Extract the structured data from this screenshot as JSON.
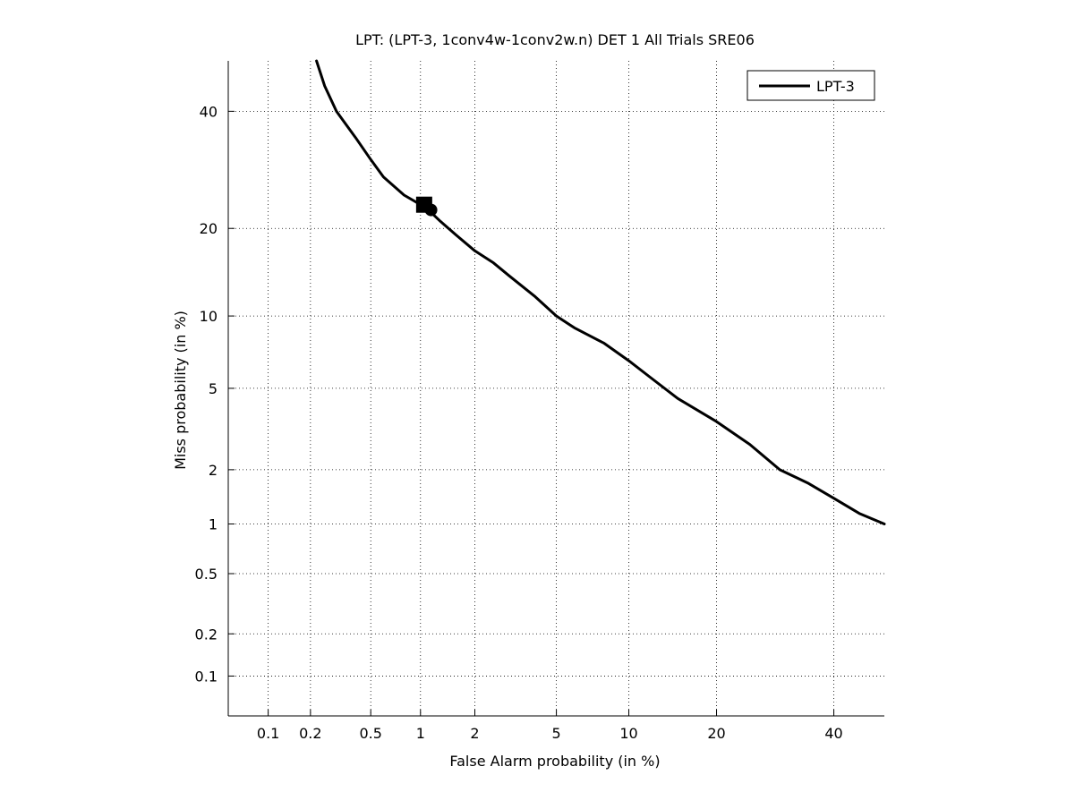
{
  "chart_data": {
    "type": "line",
    "title": "LPT: (LPT-3, 1conv4w-1conv2w.n) DET 1 All Trials SRE06",
    "xlabel": "False Alarm probability (in %)",
    "ylabel": "Miss probability (in %)",
    "x_scale": "normal-deviate (probit)",
    "y_scale": "normal-deviate (probit)",
    "xlim": [
      0.05,
      50
    ],
    "ylim": [
      0.05,
      50
    ],
    "x_ticks": [
      0.1,
      0.2,
      0.5,
      1,
      2,
      5,
      10,
      20,
      40
    ],
    "x_tick_labels": [
      "0.1",
      "0.2",
      "0.5",
      "1",
      "2",
      "5",
      "10",
      "20",
      "40"
    ],
    "y_ticks": [
      0.1,
      0.2,
      0.5,
      1,
      2,
      5,
      10,
      20,
      40
    ],
    "y_tick_labels": [
      "0.1",
      "0.2",
      "0.5",
      "1",
      "2",
      "5",
      "10",
      "20",
      "40"
    ],
    "grid": true,
    "grid_style": "dotted",
    "legend_position": "top-right",
    "series": [
      {
        "name": "LPT-3",
        "color": "#000000",
        "x": [
          0.22,
          0.25,
          0.3,
          0.4,
          0.5,
          0.6,
          0.8,
          1.0,
          1.1,
          1.3,
          1.6,
          2.0,
          2.5,
          3.0,
          4.0,
          5.0,
          6.0,
          8.0,
          10.0,
          12.0,
          15.0,
          20.0,
          25.0,
          30.0,
          35.0,
          40.0,
          45.0,
          50.0
        ],
        "y": [
          50,
          45,
          40,
          35,
          31,
          28,
          25,
          23.5,
          22.8,
          21,
          19,
          17,
          15.5,
          14,
          11.8,
          10,
          9,
          7.8,
          6.6,
          5.6,
          4.5,
          3.5,
          2.7,
          2.0,
          1.7,
          1.4,
          1.15,
          1.0
        ]
      }
    ],
    "markers": [
      {
        "shape": "square",
        "x": 1.05,
        "y": 23.5
      },
      {
        "shape": "circle",
        "x": 1.15,
        "y": 22.7
      }
    ]
  }
}
